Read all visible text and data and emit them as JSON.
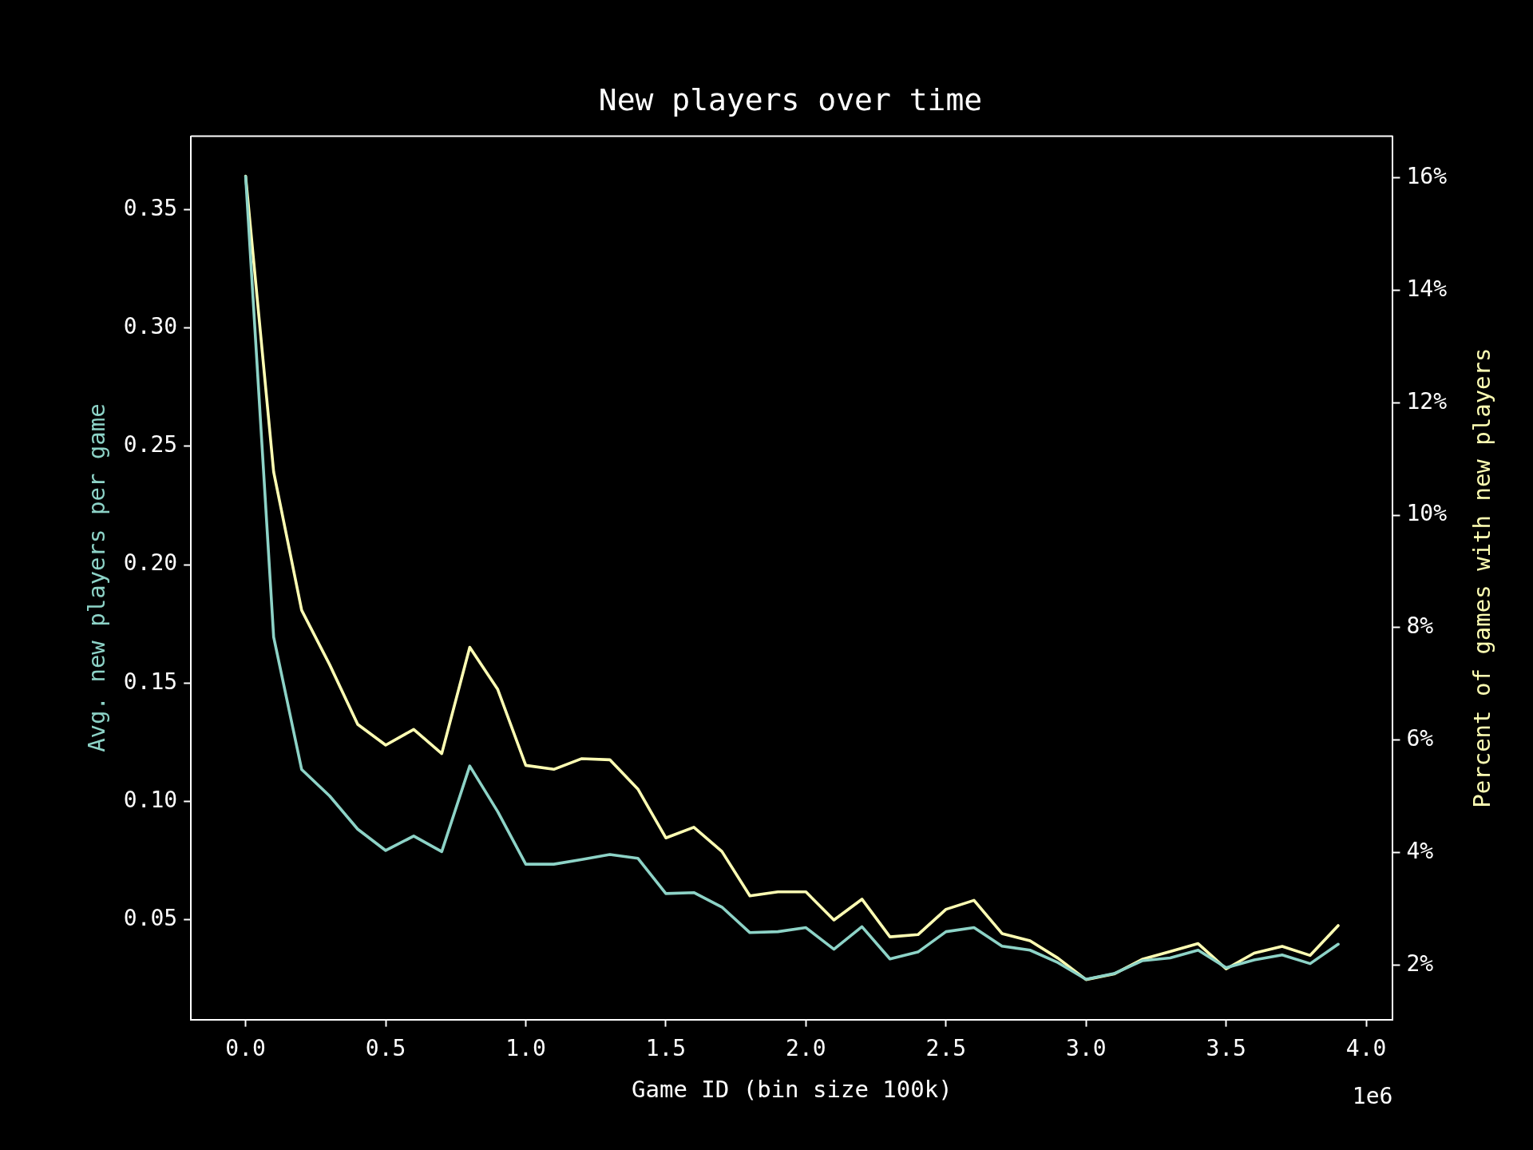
{
  "chart_data": {
    "type": "line",
    "title": "New players over time",
    "xlabel": "Game ID (bin size 100k)",
    "ylabel": "Avg. new players per game",
    "y2label": "Percent of games with new players",
    "annotations": [
      "1e6"
    ],
    "x": [
      0,
      0.1,
      0.2,
      0.3,
      0.4,
      0.5,
      0.6,
      0.7,
      0.8,
      0.9,
      1.0,
      1.1,
      1.2,
      1.3,
      1.4,
      1.5,
      1.6,
      1.7,
      1.8,
      1.9,
      2.0,
      2.1,
      2.2,
      2.3,
      2.4,
      2.5,
      2.6,
      2.7,
      2.8,
      2.9,
      3.0,
      3.1,
      3.2,
      3.3,
      3.4,
      3.5,
      3.6,
      3.7,
      3.8,
      3.9
    ],
    "series": [
      {
        "color": "#8dd3c7",
        "values": [
          0.364,
          0.1695,
          0.1135,
          0.1023,
          0.0883,
          0.0793,
          0.0854,
          0.0788,
          0.115,
          0.0957,
          0.0735,
          0.0735,
          0.0755,
          0.0776,
          0.076,
          0.0611,
          0.0615,
          0.0554,
          0.0446,
          0.045,
          0.0467,
          0.0376,
          0.0471,
          0.0335,
          0.0364,
          0.045,
          0.0467,
          0.0389,
          0.0372,
          0.0319,
          0.0249,
          0.0273,
          0.0327,
          0.0339,
          0.0372,
          0.0298,
          0.0331,
          0.0352,
          0.0315,
          0.0397
        ]
      },
      {
        "color": "#ffffb3",
        "axis": "y2",
        "values": [
          16.03,
          10.77,
          8.31,
          7.34,
          6.28,
          5.91,
          6.19,
          5.76,
          7.65,
          6.9,
          5.55,
          5.48,
          5.67,
          5.65,
          5.13,
          4.26,
          4.45,
          4.02,
          3.23,
          3.3,
          3.3,
          2.8,
          3.17,
          2.5,
          2.54,
          2.99,
          3.15,
          2.56,
          2.43,
          2.12,
          1.74,
          1.84,
          2.1,
          2.24,
          2.38,
          1.93,
          2.21,
          2.33,
          2.17,
          2.7
        ]
      }
    ],
    "xlim": [
      -0.195,
      4.095
    ],
    "xticks": [
      {
        "value": 0,
        "label": "0.0"
      },
      {
        "value": 0.5,
        "label": "0.5"
      },
      {
        "value": 1,
        "label": "1.0"
      },
      {
        "value": 1.5,
        "label": "1.5"
      },
      {
        "value": 2,
        "label": "2.0"
      },
      {
        "value": 2.5,
        "label": "2.5"
      },
      {
        "value": 3,
        "label": "3.0"
      },
      {
        "value": 3.5,
        "label": "3.5"
      },
      {
        "value": 4,
        "label": "4.0"
      }
    ],
    "ylim": [
      0.0079,
      0.381
    ],
    "yticks": [
      {
        "value": 0.05,
        "label": "0.05"
      },
      {
        "value": 0.1,
        "label": "0.10"
      },
      {
        "value": 0.15,
        "label": "0.15"
      },
      {
        "value": 0.2,
        "label": "0.20"
      },
      {
        "value": 0.25,
        "label": "0.25"
      },
      {
        "value": 0.3,
        "label": "0.30"
      },
      {
        "value": 0.35,
        "label": "0.35"
      }
    ],
    "y2lim": [
      1.03,
      16.74
    ],
    "y2ticks": [
      {
        "value": 2,
        "label": "2%"
      },
      {
        "value": 4,
        "label": "4%"
      },
      {
        "value": 6,
        "label": "6%"
      },
      {
        "value": 8,
        "label": "8%"
      },
      {
        "value": 10,
        "label": "10%"
      },
      {
        "value": 12,
        "label": "12%"
      },
      {
        "value": 14,
        "label": "14%"
      },
      {
        "value": 16,
        "label": "16%"
      }
    ],
    "marker": "none",
    "line_style": "solid"
  }
}
